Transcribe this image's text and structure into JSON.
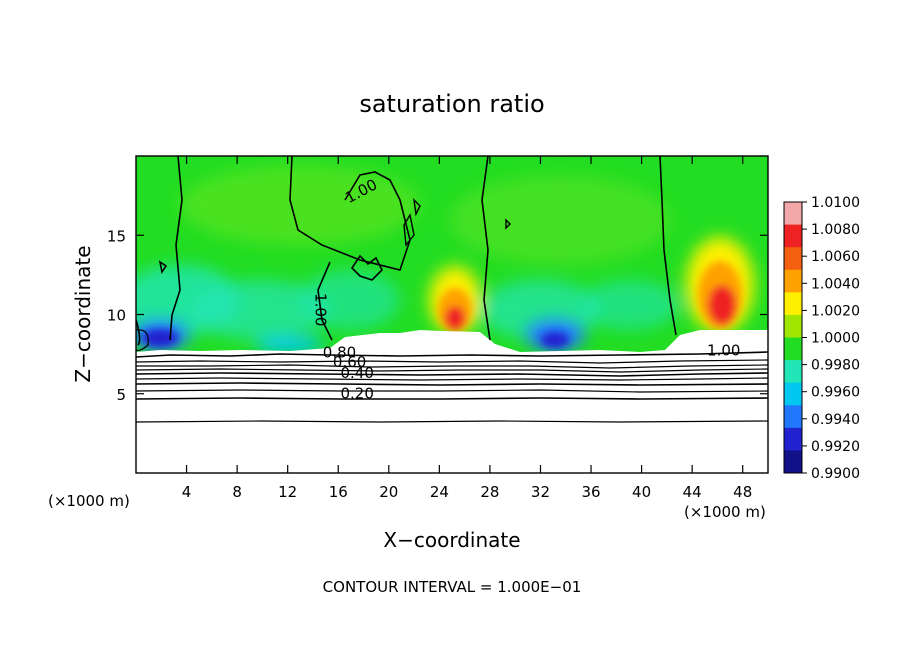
{
  "chart_data": {
    "type": "heatmap",
    "title": "saturation ratio",
    "xlabel": "X−coordinate",
    "ylabel": "Z−coordinate",
    "x_unit_left": "(×1000 m)",
    "x_unit_right": "(×1000 m)",
    "xlim": [
      0,
      50
    ],
    "ylim": [
      0,
      20
    ],
    "x_ticks": [
      4,
      8,
      12,
      16,
      20,
      24,
      28,
      32,
      36,
      40,
      44,
      48
    ],
    "y_ticks": [
      5,
      10,
      15
    ],
    "colorbar": {
      "values": [
        1.01,
        1.008,
        1.006,
        1.004,
        1.002,
        1.0,
        0.998,
        0.996,
        0.994,
        0.992,
        0.99
      ],
      "labels": [
        "1.0100",
        "1.0080",
        "1.0060",
        "1.0040",
        "1.0020",
        "1.0000",
        "0.9980",
        "0.9960",
        "0.9940",
        "0.9920",
        "0.9900"
      ],
      "colors": [
        "#f2a8a8",
        "#ee2222",
        "#f45f10",
        "#ffa200",
        "#fff000",
        "#a0e600",
        "#22dd22",
        "#22e6b8",
        "#00c8f0",
        "#2277ff",
        "#2222d0",
        "#111188"
      ]
    },
    "contour_labels": [
      {
        "text": "1.00",
        "x": 18.0,
        "z": 17.5
      },
      {
        "text": "1.00",
        "x": 14.2,
        "z": 10.3
      },
      {
        "text": "1.00",
        "x": 46.5,
        "z": 7.4
      },
      {
        "text": "0.80",
        "x": 16.1,
        "z": 7.3
      },
      {
        "text": "0.60",
        "x": 16.9,
        "z": 6.7
      },
      {
        "text": "0.40",
        "x": 17.5,
        "z": 6.0
      },
      {
        "text": "0.20",
        "x": 17.5,
        "z": 4.7
      }
    ],
    "footer": "CONTOUR INTERVAL = 1.000E−01"
  }
}
